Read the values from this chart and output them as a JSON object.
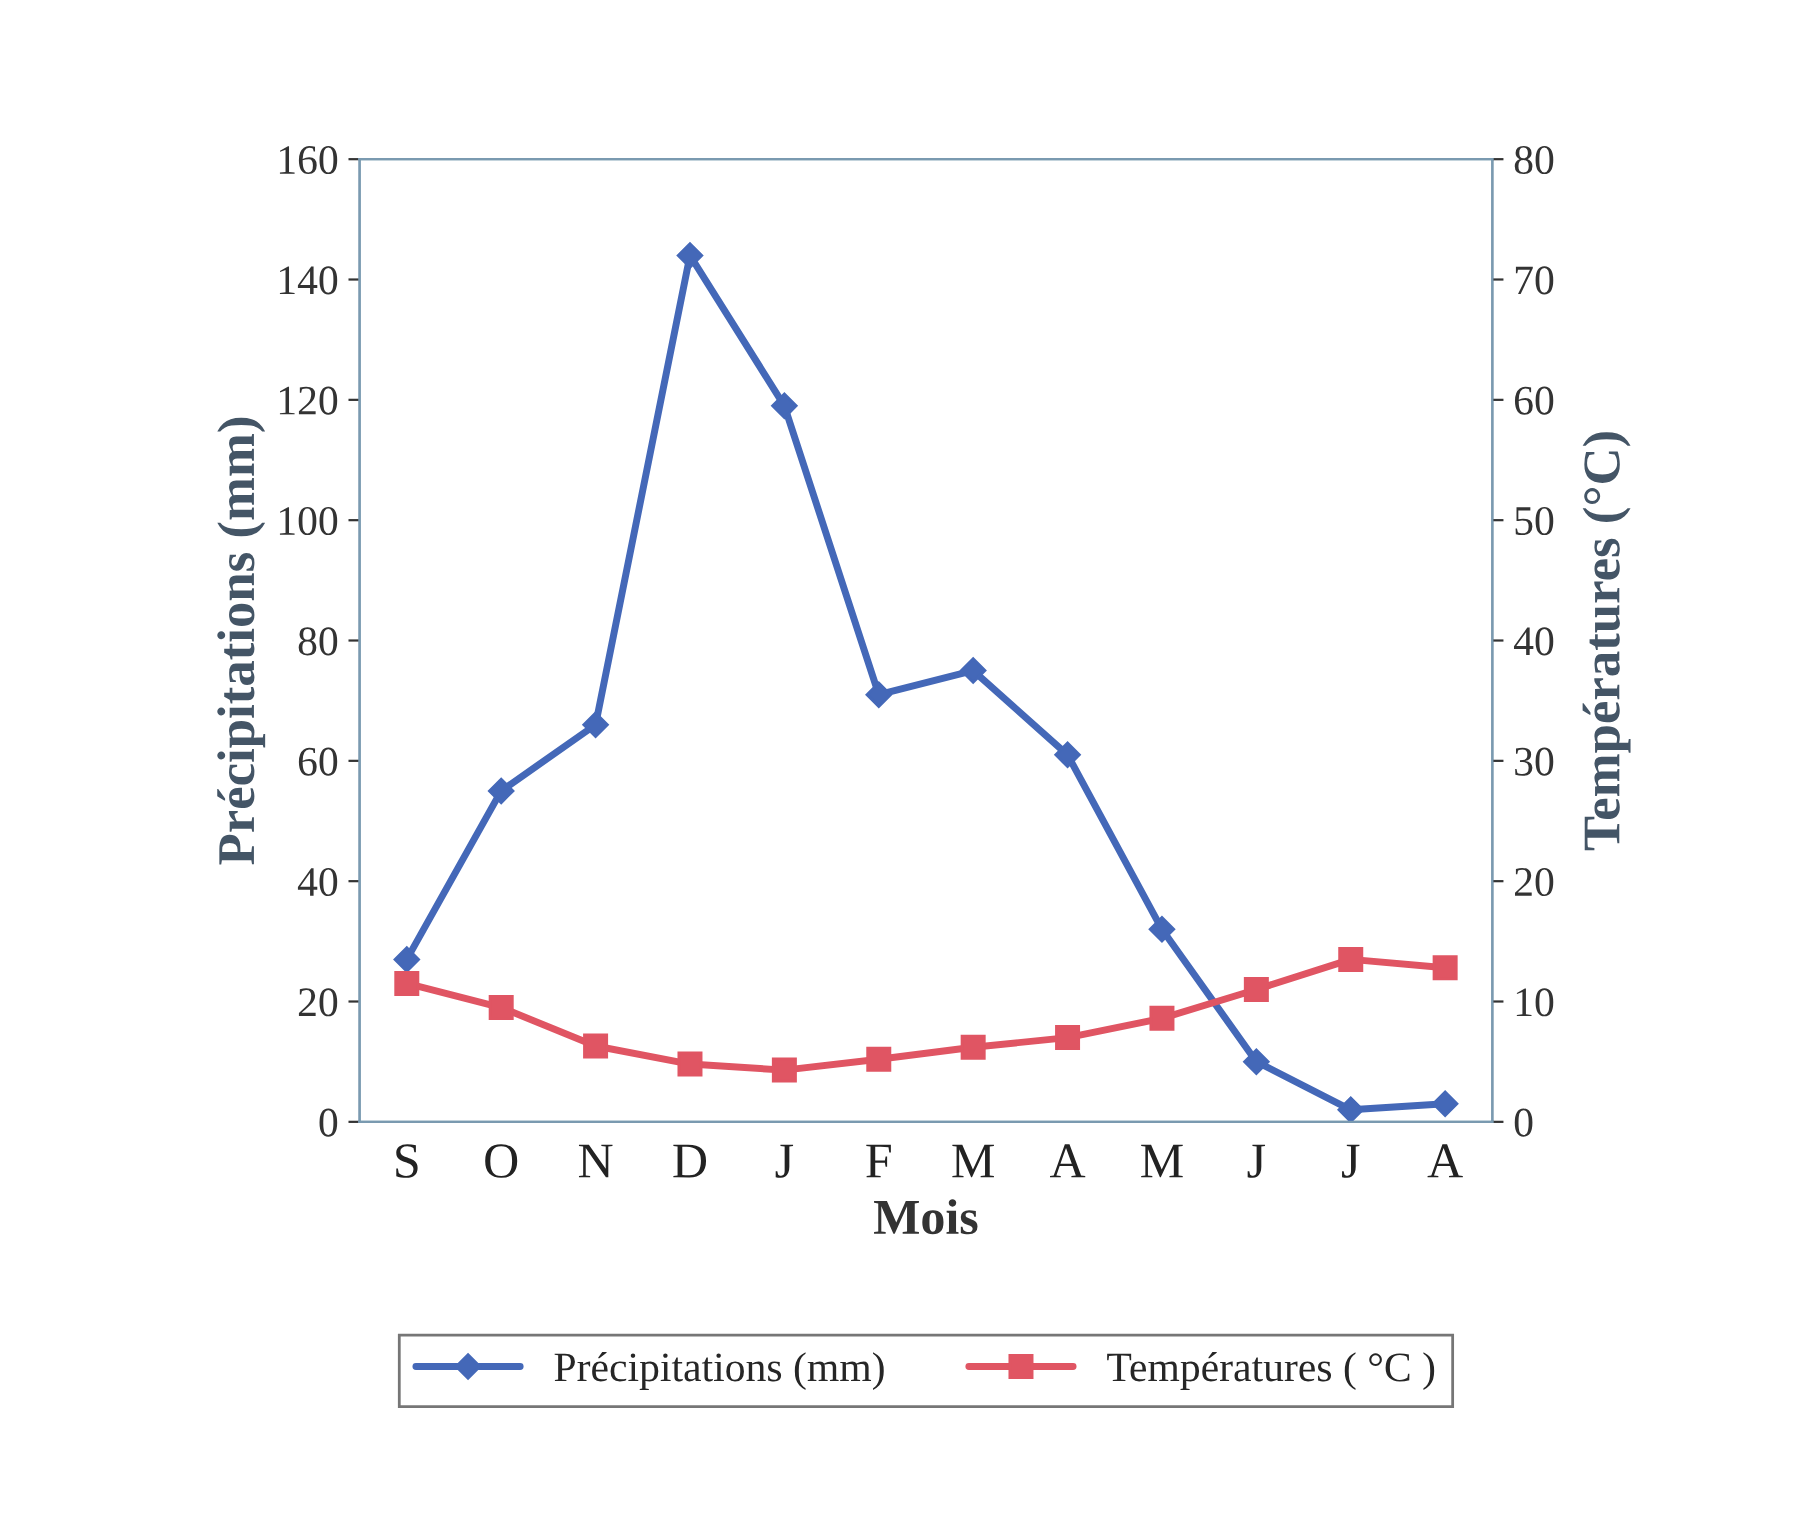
{
  "chart_data": {
    "type": "line",
    "xlabel": "Mois",
    "ylabel": "Précipitations (mm)",
    "y2label": "Températures (°C)",
    "categories": [
      "S",
      "O",
      "N",
      "D",
      "J",
      "F",
      "M",
      "A",
      "M",
      "J",
      "J",
      "A"
    ],
    "series": [
      {
        "name": "Précipitations (mm)",
        "color": "#4468b8",
        "marker": "diamond",
        "values": [
          27,
          55,
          66,
          144,
          119,
          71,
          75,
          61,
          32,
          10,
          2,
          3
        ]
      },
      {
        "name": "Températures ( °C )",
        "color": "#e05563",
        "marker": "square",
        "axis": "y2",
        "values": [
          11.5,
          9.5,
          6.3,
          4.8,
          4.3,
          5.2,
          6.2,
          7,
          8.6,
          11,
          13.5,
          12.8
        ]
      }
    ],
    "ylim": [
      0,
      160
    ],
    "yticks": [
      0,
      20,
      40,
      60,
      80,
      100,
      120,
      140,
      160
    ],
    "y2lim": [
      0,
      80
    ],
    "y2ticks": [
      0,
      10,
      20,
      30,
      40,
      50,
      60,
      70,
      80
    ],
    "grid": false,
    "legend": "bottom"
  }
}
